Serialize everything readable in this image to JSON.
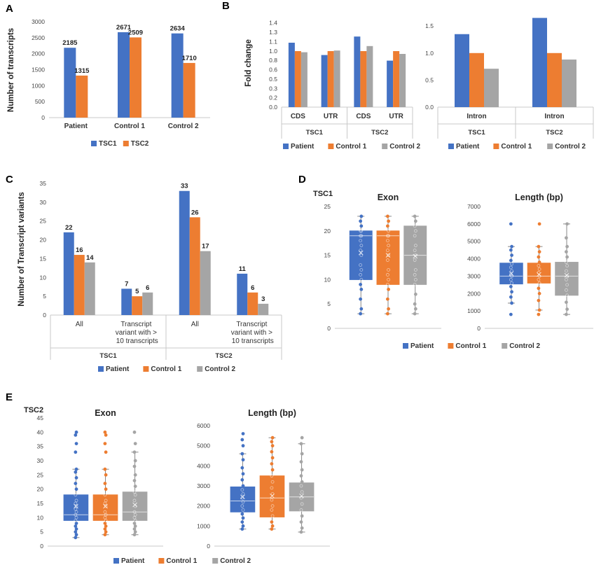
{
  "colors": {
    "blue": "#4472C4",
    "orange": "#ED7D31",
    "gray": "#A5A5A5"
  },
  "panel_labels": {
    "a": "A",
    "b": "B",
    "c": "C",
    "d": "D",
    "e": "E"
  },
  "chart_data": [
    {
      "id": "A",
      "type": "bar",
      "ylabel": "Number of transcripts",
      "ylim": [
        0,
        3000
      ],
      "yticks": [
        "0",
        "500",
        "1000",
        "1500",
        "2000",
        "2500",
        "3000"
      ],
      "categories": [
        "Patient",
        "Control 1",
        "Control 2"
      ],
      "series": [
        {
          "name": "TSC1",
          "color": "#4472C4",
          "values": [
            2185,
            2671,
            2634
          ]
        },
        {
          "name": "TSC2",
          "color": "#ED7D31",
          "values": [
            1315,
            2509,
            1710
          ]
        }
      ]
    },
    {
      "id": "B1",
      "type": "bar",
      "ylabel": "Fold change",
      "ylim": [
        0,
        1.5
      ],
      "yticks": [
        "0.0",
        "0.2",
        "0.3",
        "0.5",
        "0.6",
        "0.8",
        "1.0",
        "1.1",
        "1.3",
        "1.4"
      ],
      "categories": [
        "CDS",
        "UTR",
        "CDS",
        "UTR"
      ],
      "groups": [
        "TSC1",
        "TSC2"
      ],
      "series": [
        {
          "name": "Patient",
          "color": "#4472C4",
          "values": [
            1.15,
            0.93,
            1.26,
            0.83
          ]
        },
        {
          "name": "Control 1",
          "color": "#ED7D31",
          "values": [
            1.0,
            1.0,
            1.0,
            1.0
          ]
        },
        {
          "name": "Control 2",
          "color": "#A5A5A5",
          "values": [
            0.98,
            1.01,
            1.09,
            0.95
          ]
        }
      ]
    },
    {
      "id": "B2",
      "type": "bar",
      "ylim": [
        0,
        1.8
      ],
      "yticks": [
        "0.0",
        "0.5",
        "1.0",
        "1.5"
      ],
      "categories": [
        "Intron",
        "Intron"
      ],
      "groups": [
        "TSC1",
        "TSC2"
      ],
      "series": [
        {
          "name": "Patient",
          "color": "#4472C4",
          "values": [
            1.35,
            1.65
          ]
        },
        {
          "name": "Control 1",
          "color": "#ED7D31",
          "values": [
            1.0,
            1.0
          ]
        },
        {
          "name": "Control 2",
          "color": "#A5A5A5",
          "values": [
            0.71,
            0.88
          ]
        }
      ]
    },
    {
      "id": "C",
      "type": "bar",
      "ylabel": "Number of Transcript variants",
      "ylim": [
        0,
        35
      ],
      "yticks": [
        "0",
        "5",
        "10",
        "15",
        "20",
        "25",
        "30",
        "35"
      ],
      "categories": [
        "All",
        "Transcript variant with > 10 transcripts",
        "All",
        "Transcript variant with > 10 transcripts"
      ],
      "groups": [
        "TSC1",
        "TSC2"
      ],
      "series": [
        {
          "name": "Patient",
          "color": "#4472C4",
          "values": [
            22,
            7,
            33,
            11
          ]
        },
        {
          "name": "Control 1",
          "color": "#ED7D31",
          "values": [
            16,
            5,
            26,
            6
          ]
        },
        {
          "name": "Control 2",
          "color": "#A5A5A5",
          "values": [
            14,
            6,
            17,
            3
          ]
        }
      ]
    },
    {
      "id": "D1",
      "type": "box",
      "group_label": "TSC1",
      "title": "Exon",
      "ylim": [
        0,
        25
      ],
      "yticks": [
        "0",
        "5",
        "10",
        "15",
        "20",
        "25"
      ],
      "series": [
        {
          "name": "Patient",
          "color": "#4472C4",
          "min": 3,
          "q1": 10,
          "median": 19,
          "q3": 20,
          "max": 23,
          "mean": 15.5,
          "points": [
            3,
            4,
            6,
            8,
            9,
            10,
            11,
            12,
            13,
            15,
            16,
            17,
            18,
            19,
            19,
            20,
            20,
            21,
            22,
            23
          ]
        },
        {
          "name": "Control 1",
          "color": "#ED7D31",
          "min": 3,
          "q1": 9,
          "median": 19,
          "q3": 20,
          "max": 23,
          "mean": 15,
          "points": [
            3,
            4,
            6,
            8,
            9,
            10,
            11,
            12,
            14,
            15,
            16,
            17,
            18,
            19,
            19,
            20,
            21,
            22,
            23
          ]
        },
        {
          "name": "Control 2",
          "color": "#A5A5A5",
          "min": 3,
          "q1": 9,
          "median": 15,
          "q3": 21,
          "max": 23,
          "mean": 14.8,
          "points": [
            3,
            4,
            5,
            7,
            9,
            10,
            11,
            12,
            14,
            15,
            16,
            17,
            19,
            20,
            21,
            22,
            23
          ]
        }
      ]
    },
    {
      "id": "D2",
      "type": "box",
      "title": "Length (bp)",
      "ylim": [
        0,
        7000
      ],
      "yticks": [
        "0",
        "1000",
        "2000",
        "3000",
        "4000",
        "5000",
        "6000",
        "7000"
      ],
      "series": [
        {
          "name": "Patient",
          "color": "#4472C4",
          "min": 1450,
          "q1": 2550,
          "median": 3000,
          "q3": 3750,
          "max": 4700,
          "mean": 3150,
          "points": [
            800,
            1450,
            1800,
            2100,
            2400,
            2600,
            2800,
            3000,
            3100,
            3300,
            3500,
            3700,
            3900,
            4200,
            4500,
            4700,
            6000
          ]
        },
        {
          "name": "Control 1",
          "color": "#ED7D31",
          "min": 1050,
          "q1": 2600,
          "median": 3000,
          "q3": 3750,
          "max": 4700,
          "mean": 3100,
          "points": [
            800,
            1050,
            1600,
            2000,
            2300,
            2600,
            2800,
            3000,
            3200,
            3400,
            3600,
            3800,
            4100,
            4400,
            4700,
            6000
          ]
        },
        {
          "name": "Control 2",
          "color": "#A5A5A5",
          "min": 800,
          "q1": 1900,
          "median": 3000,
          "q3": 3800,
          "max": 6000,
          "mean": 3050,
          "points": [
            800,
            1100,
            1500,
            1900,
            2200,
            2500,
            2800,
            3000,
            3300,
            3600,
            3800,
            4100,
            4400,
            4700,
            5200,
            6000
          ]
        }
      ]
    },
    {
      "id": "E1",
      "type": "box",
      "group_label": "TSC2",
      "title": "Exon",
      "ylim": [
        0,
        45
      ],
      "yticks": [
        "0",
        "5",
        "10",
        "15",
        "20",
        "25",
        "30",
        "35",
        "40",
        "45"
      ],
      "series": [
        {
          "name": "Patient",
          "color": "#4472C4",
          "min": 3,
          "q1": 9,
          "median": 11,
          "q3": 18,
          "max": 27,
          "mean": 14,
          "points": [
            3,
            4,
            5,
            6,
            7,
            8,
            9,
            10,
            11,
            12,
            13,
            14,
            15,
            16,
            18,
            20,
            22,
            24,
            26,
            27,
            33,
            36,
            39,
            40
          ]
        },
        {
          "name": "Control 1",
          "color": "#ED7D31",
          "min": 4,
          "q1": 9,
          "median": 11,
          "q3": 18,
          "max": 27,
          "mean": 14,
          "points": [
            4,
            5,
            6,
            7,
            8,
            9,
            10,
            11,
            12,
            14,
            15,
            16,
            18,
            20,
            22,
            25,
            27,
            33,
            36,
            39,
            40
          ]
        },
        {
          "name": "Control 2",
          "color": "#A5A5A5",
          "min": 4,
          "q1": 9,
          "median": 12,
          "q3": 19,
          "max": 33,
          "mean": 14.5,
          "points": [
            4,
            5,
            6,
            7,
            8,
            9,
            10,
            11,
            12,
            14,
            16,
            18,
            19,
            21,
            23,
            25,
            28,
            30,
            33,
            36,
            40
          ]
        }
      ]
    },
    {
      "id": "E2",
      "type": "box",
      "title": "Length (bp)",
      "ylim": [
        0,
        6000
      ],
      "yticks": [
        "0",
        "1000",
        "2000",
        "3000",
        "4000",
        "5000",
        "6000"
      ],
      "series": [
        {
          "name": "Patient",
          "color": "#4472C4",
          "min": 850,
          "q1": 1700,
          "median": 2250,
          "q3": 2950,
          "max": 4600,
          "mean": 2450,
          "points": [
            850,
            1000,
            1200,
            1400,
            1600,
            1800,
            2000,
            2200,
            2400,
            2600,
            2800,
            3000,
            3300,
            3600,
            3900,
            4300,
            4600,
            5000,
            5300,
            5600
          ]
        },
        {
          "name": "Control 1",
          "color": "#ED7D31",
          "min": 850,
          "q1": 1450,
          "median": 2400,
          "q3": 3500,
          "max": 5400,
          "mean": 2500,
          "points": [
            850,
            1000,
            1200,
            1500,
            1800,
            2000,
            2300,
            2600,
            2900,
            3200,
            3500,
            3800,
            4100,
            4400,
            4700,
            5000,
            5200,
            5400
          ]
        },
        {
          "name": "Control 2",
          "color": "#A5A5A5",
          "min": 700,
          "q1": 1750,
          "median": 2450,
          "q3": 3150,
          "max": 5100,
          "mean": 2500,
          "points": [
            700,
            900,
            1200,
            1500,
            1800,
            2100,
            2400,
            2700,
            3000,
            3200,
            3500,
            3800,
            4200,
            4600,
            5100,
            5400
          ]
        }
      ]
    }
  ]
}
